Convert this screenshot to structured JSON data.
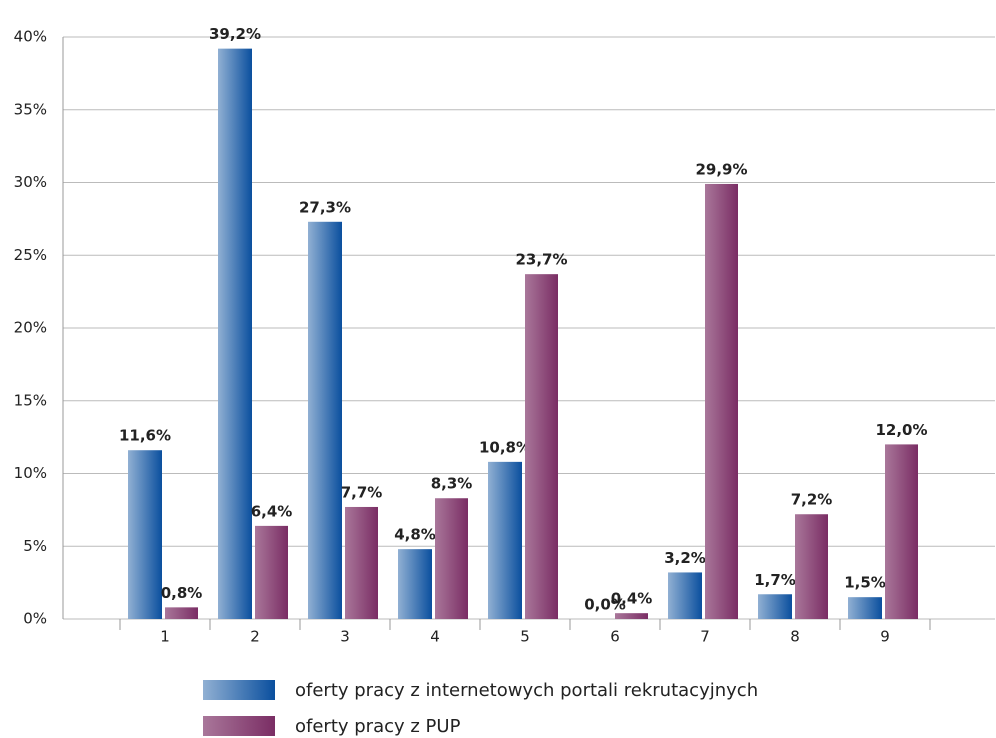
{
  "chart_data": {
    "type": "bar",
    "categories": [
      "1",
      "2",
      "3",
      "4",
      "5",
      "6",
      "7",
      "8",
      "9"
    ],
    "series": [
      {
        "name": "oferty pracy z internetowych portali rekrutacyjnych",
        "color": "#0a4f9e",
        "values": [
          11.6,
          39.2,
          27.3,
          4.8,
          10.8,
          0.0,
          3.2,
          1.7,
          1.5
        ],
        "value_labels": [
          "11,6%",
          "39,2%",
          "27,3%",
          "4,8%",
          "10,8%",
          "0,0%",
          "3,2%",
          "1,7%",
          "1,5%"
        ]
      },
      {
        "name": "oferty pracy z PUP",
        "color": "#7a2d64",
        "values": [
          0.8,
          6.4,
          7.7,
          8.3,
          23.7,
          0.4,
          29.9,
          7.2,
          12.0
        ],
        "value_labels": [
          "0,8%",
          "6,4%",
          "7,7%",
          "8,3%",
          "23,7%",
          "0,4%",
          "29,9%",
          "7,2%",
          "12,0%"
        ]
      }
    ],
    "ylim": [
      0,
      40
    ],
    "yticks": [
      {
        "value": 0,
        "label": "0%"
      },
      {
        "value": 5,
        "label": "5%"
      },
      {
        "value": 10,
        "label": "10%"
      },
      {
        "value": 15,
        "label": "15%"
      },
      {
        "value": 20,
        "label": "20%"
      },
      {
        "value": 25,
        "label": "25%"
      },
      {
        "value": 30,
        "label": "30%"
      },
      {
        "value": 35,
        "label": "35%"
      },
      {
        "value": 40,
        "label": "40%"
      }
    ],
    "grid": true,
    "legend": "bottom"
  }
}
